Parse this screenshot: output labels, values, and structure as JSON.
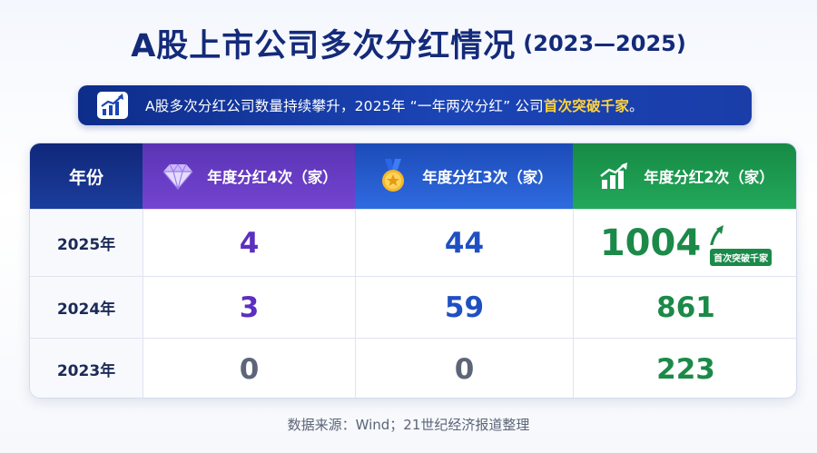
{
  "title": {
    "main": "A股上市公司多次分红情况",
    "range": "(2023—2025)"
  },
  "banner": {
    "icon": "growth-chart-icon",
    "text": "A股多次分红公司数量持续攀升，2025年 “一年两次分红” 公司",
    "highlight": "首次突破千家",
    "end": "。"
  },
  "table": {
    "headers": {
      "year": "年份",
      "col4": "年度分红4次（家）",
      "col3": "年度分红3次（家）",
      "col2": "年度分红2次（家）"
    },
    "header_icons": {
      "col4": "diamond-icon",
      "col3": "medal-icon",
      "col2": "bar-growth-icon"
    },
    "rows": [
      {
        "year": "2025年",
        "col4": "4",
        "col3": "44",
        "col2": "1004",
        "badge": "首次突破千家"
      },
      {
        "year": "2024年",
        "col4": "3",
        "col3": "59",
        "col2": "861"
      },
      {
        "year": "2023年",
        "col4": "0",
        "col3": "0",
        "col2": "223"
      }
    ],
    "colors": {
      "col4": "#5b2fc0",
      "col3": "#1f4fc2",
      "col2": "#1b8a48",
      "zero": "#5d6577"
    }
  },
  "source": "数据来源：Wind；21世纪经济报道整理"
}
